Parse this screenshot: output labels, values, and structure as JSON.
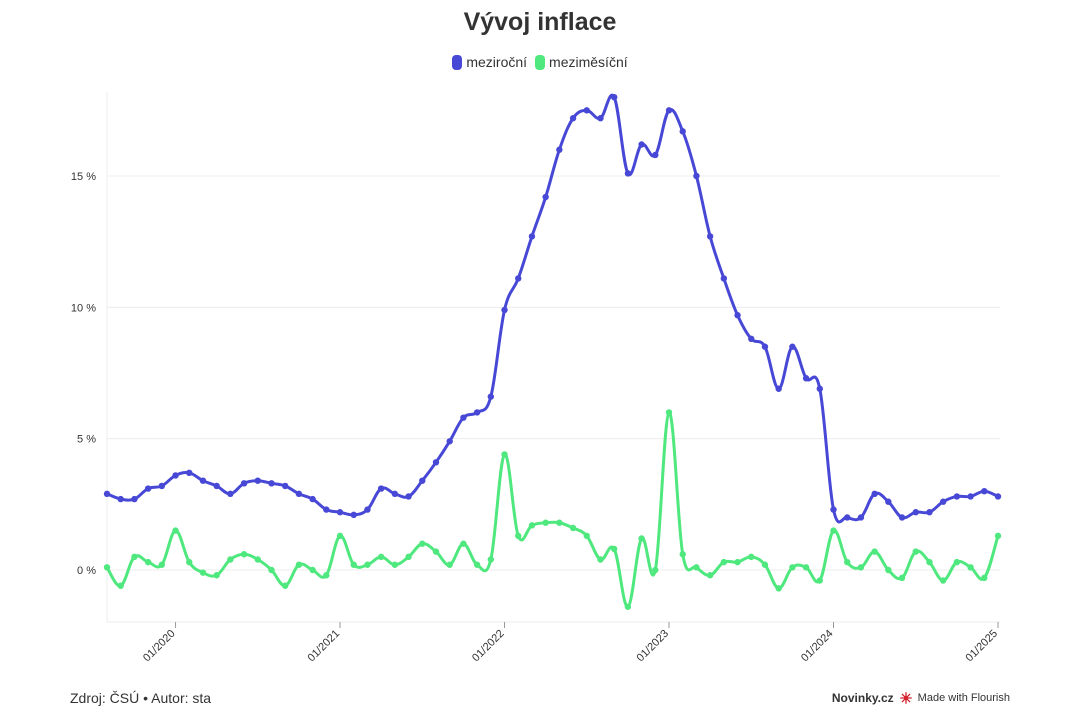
{
  "chart_data": {
    "type": "line",
    "title": "Vývoj inflace",
    "yticks": [
      0,
      5,
      10,
      15
    ],
    "ytick_labels": [
      "0 %",
      "5 %",
      "10 %",
      "15 %"
    ],
    "ylim": [
      -2,
      18.5
    ],
    "xticks": [
      "01/2020",
      "01/2021",
      "01/2022",
      "01/2023",
      "01/2024",
      "01/2025"
    ],
    "x": [
      "08/2019",
      "09/2019",
      "10/2019",
      "11/2019",
      "12/2019",
      "01/2020",
      "02/2020",
      "03/2020",
      "04/2020",
      "05/2020",
      "06/2020",
      "07/2020",
      "08/2020",
      "09/2020",
      "10/2020",
      "11/2020",
      "12/2020",
      "01/2021",
      "02/2021",
      "03/2021",
      "04/2021",
      "05/2021",
      "06/2021",
      "07/2021",
      "08/2021",
      "09/2021",
      "10/2021",
      "11/2021",
      "12/2021",
      "01/2022",
      "02/2022",
      "03/2022",
      "04/2022",
      "05/2022",
      "06/2022",
      "07/2022",
      "08/2022",
      "09/2022",
      "10/2022",
      "11/2022",
      "12/2022",
      "01/2023",
      "02/2023",
      "03/2023",
      "04/2023",
      "05/2023",
      "06/2023",
      "07/2023",
      "08/2023",
      "09/2023",
      "10/2023",
      "11/2023",
      "12/2023",
      "01/2024",
      "02/2024",
      "03/2024",
      "04/2024",
      "05/2024",
      "06/2024",
      "07/2024",
      "08/2024",
      "09/2024",
      "10/2024",
      "11/2024",
      "12/2024",
      "01/2025"
    ],
    "series": [
      {
        "name": "meziroční",
        "color": "#4848d6",
        "values": [
          2.9,
          2.7,
          2.7,
          3.1,
          3.2,
          3.6,
          3.7,
          3.4,
          3.2,
          2.9,
          3.3,
          3.4,
          3.3,
          3.2,
          2.9,
          2.7,
          2.3,
          2.2,
          2.1,
          2.3,
          3.1,
          2.9,
          2.8,
          3.4,
          4.1,
          4.9,
          5.8,
          6.0,
          6.6,
          9.9,
          11.1,
          12.7,
          14.2,
          16.0,
          17.2,
          17.5,
          17.2,
          18.0,
          15.1,
          16.2,
          15.8,
          17.5,
          16.7,
          15.0,
          12.7,
          11.1,
          9.7,
          8.8,
          8.5,
          6.9,
          8.5,
          7.3,
          6.9,
          2.3,
          2.0,
          2.0,
          2.9,
          2.6,
          2.0,
          2.2,
          2.2,
          2.6,
          2.8,
          2.8,
          3.0,
          2.8
        ]
      },
      {
        "name": "meziměsíční",
        "color": "#4fe87e",
        "values": [
          0.1,
          -0.6,
          0.5,
          0.3,
          0.2,
          1.5,
          0.3,
          -0.1,
          -0.2,
          0.4,
          0.6,
          0.4,
          0.0,
          -0.6,
          0.2,
          0.0,
          -0.2,
          1.3,
          0.2,
          0.2,
          0.5,
          0.2,
          0.5,
          1.0,
          0.7,
          0.2,
          1.0,
          0.2,
          0.4,
          4.4,
          1.3,
          1.7,
          1.8,
          1.8,
          1.6,
          1.3,
          0.4,
          0.8,
          -1.4,
          1.2,
          0.0,
          6.0,
          0.6,
          0.1,
          -0.2,
          0.3,
          0.3,
          0.5,
          0.2,
          -0.7,
          0.1,
          0.1,
          -0.4,
          1.5,
          0.3,
          0.1,
          0.7,
          0.0,
          -0.3,
          0.7,
          0.3,
          -0.4,
          0.3,
          0.1,
          -0.3,
          1.3
        ]
      }
    ]
  },
  "footer": {
    "source": "Zdroj: ČSÚ • Autor: sta",
    "brand": "Novinky.cz",
    "flourish": "Made with Flourish"
  }
}
